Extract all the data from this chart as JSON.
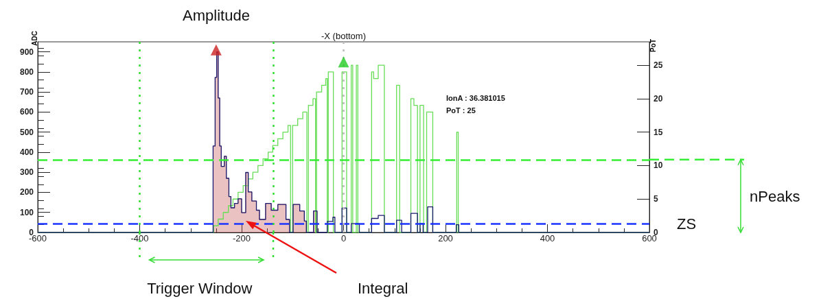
{
  "chart_data": {
    "type": "step",
    "xlabel": null,
    "ylabel": "ADC",
    "y2label": "PoT",
    "xlim": [
      -600,
      600
    ],
    "xticks": [
      -600,
      -400,
      -200,
      0,
      200,
      400,
      600
    ],
    "ylim": [
      0,
      950
    ],
    "yticks": [
      0,
      100,
      200,
      300,
      400,
      500,
      600,
      700,
      800,
      900
    ],
    "y2lim": [
      0,
      28.5
    ],
    "y2ticks": [
      0,
      5,
      10,
      15,
      20,
      25
    ],
    "grid": false,
    "series": [
      {
        "type": "area",
        "color": "#c0504d",
        "x": [
          -256,
          -252,
          -249,
          -246,
          -243,
          -240,
          -234,
          -230,
          -225,
          -221,
          -214,
          -207,
          -200,
          -192,
          -187,
          -180,
          -171,
          -165,
          -153,
          -142,
          -129,
          -113,
          -106,
          -99,
          -86,
          -77,
          -73,
          -59,
          -52
        ],
        "values": [
          431,
          773,
          900,
          670,
          431,
          329,
          380,
          270,
          179,
          123,
          145,
          168,
          99,
          299,
          202,
          157,
          111,
          65,
          145,
          111,
          140,
          65,
          0,
          140,
          107,
          57,
          0,
          107,
          0
        ]
      },
      {
        "color": "#66dd55",
        "axis": "y2",
        "x": [
          -600,
          -255,
          -246,
          -236,
          -226,
          -217,
          -207,
          -197,
          -187,
          -178,
          -168,
          -158,
          -148,
          -139,
          -129,
          -119,
          -109,
          -104,
          -100,
          -90,
          -80,
          -72,
          -69,
          -60,
          -55,
          -53,
          -43,
          -35,
          -32,
          -30,
          -20,
          -3,
          6,
          15,
          18,
          25,
          28,
          55,
          59,
          68,
          80,
          104,
          110,
          132,
          138,
          145,
          150,
          157,
          163,
          175,
          222,
          225,
          600
        ],
        "values": [
          0,
          1,
          2,
          3,
          4,
          5,
          6,
          7,
          8,
          9,
          10,
          11,
          12,
          13,
          14,
          15,
          16,
          0,
          16,
          17,
          18,
          0,
          19,
          20,
          0,
          21,
          22,
          23,
          0,
          24,
          0,
          24,
          0,
          25,
          0,
          25,
          0,
          24,
          23,
          25,
          0,
          22,
          0,
          20,
          19,
          0,
          19,
          0,
          18,
          0,
          15,
          0,
          0
        ]
      },
      {
        "color": "#1a1a6e",
        "x": [
          -600,
          -256,
          -252,
          -249,
          -246,
          -243,
          -240,
          -234,
          -230,
          -225,
          -221,
          -214,
          -207,
          -200,
          -192,
          -187,
          -180,
          -171,
          -165,
          -153,
          -142,
          -129,
          -113,
          -106,
          -99,
          -86,
          -77,
          -73,
          -59,
          -52,
          -32,
          -21,
          -17,
          -3,
          6,
          15,
          31,
          55,
          68,
          80,
          104,
          114,
          132,
          145,
          150,
          156,
          165,
          175,
          221,
          226,
          600
        ],
        "values": [
          0,
          431,
          773,
          900,
          670,
          431,
          329,
          380,
          270,
          179,
          123,
          145,
          168,
          99,
          299,
          202,
          157,
          111,
          65,
          145,
          111,
          140,
          65,
          0,
          140,
          107,
          57,
          0,
          107,
          0,
          55,
          76,
          0,
          122,
          0,
          44,
          0,
          70,
          85,
          0,
          61,
          0,
          95,
          0,
          45,
          0,
          128,
          0,
          39,
          0,
          0
        ]
      },
      {
        "type": "scatter",
        "color": "#cc2222",
        "marker": "triangle",
        "x": [
          -250
        ],
        "values": [
          910
        ]
      },
      {
        "type": "scatter",
        "color": "#22cc22",
        "marker": "triangle",
        "axis": "y2",
        "x": [
          0
        ],
        "values": [
          25.5
        ]
      }
    ],
    "ref_lines": [
      {
        "axis": "y",
        "value": 363,
        "color": "#33ee33",
        "line_style": "dashed"
      },
      {
        "axis": "y",
        "value": 42,
        "label": "ZS",
        "color": "#1a33ff",
        "line_style": "dashed"
      },
      {
        "axis": "x",
        "value": -400,
        "color": "#33dd33",
        "line_style": "dotted"
      },
      {
        "axis": "x",
        "value": -138,
        "color": "#33dd33",
        "line_style": "dotted"
      },
      {
        "axis": "x",
        "value": 0,
        "label": "-X (bottom)",
        "color": "#bbbbbb",
        "line_style": "dotted"
      }
    ],
    "annotations": [
      "Amplitude",
      "IonA : 36.381015",
      "PoT : 25",
      "nPeaks",
      "Trigger Window",
      "Integral"
    ]
  }
}
